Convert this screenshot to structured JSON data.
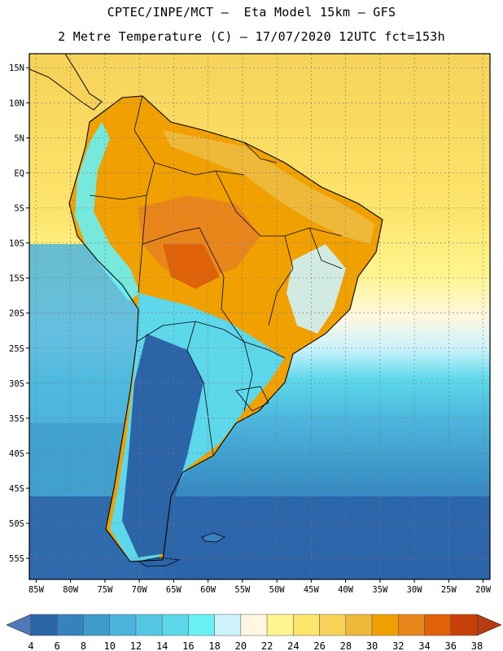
{
  "header": {
    "line1": "CPTEC/INPE/MCT –  Eta Model 15km – GFS",
    "line2": "2 Metre Temperature (C) – 17/07/2020 12UTC fct=153h"
  },
  "map": {
    "lon_range": [
      -86,
      -19
    ],
    "lat_range": [
      -58,
      17
    ],
    "lat_ticks": [
      {
        "value": 15,
        "label": "15N"
      },
      {
        "value": 10,
        "label": "10N"
      },
      {
        "value": 5,
        "label": "5N"
      },
      {
        "value": 0,
        "label": "EQ"
      },
      {
        "value": -5,
        "label": "5S"
      },
      {
        "value": -10,
        "label": "10S"
      },
      {
        "value": -15,
        "label": "15S"
      },
      {
        "value": -20,
        "label": "20S"
      },
      {
        "value": -25,
        "label": "25S"
      },
      {
        "value": -30,
        "label": "30S"
      },
      {
        "value": -35,
        "label": "35S"
      },
      {
        "value": -40,
        "label": "40S"
      },
      {
        "value": -45,
        "label": "45S"
      },
      {
        "value": -50,
        "label": "50S"
      },
      {
        "value": -55,
        "label": "55S"
      }
    ],
    "lon_ticks": [
      {
        "value": -85,
        "label": "85W"
      },
      {
        "value": -80,
        "label": "80W"
      },
      {
        "value": -75,
        "label": "75W"
      },
      {
        "value": -70,
        "label": "70W"
      },
      {
        "value": -65,
        "label": "65W"
      },
      {
        "value": -60,
        "label": "60W"
      },
      {
        "value": -55,
        "label": "55W"
      },
      {
        "value": -50,
        "label": "50W"
      },
      {
        "value": -45,
        "label": "45W"
      },
      {
        "value": -40,
        "label": "40W"
      },
      {
        "value": -35,
        "label": "35W"
      },
      {
        "value": -30,
        "label": "30W"
      },
      {
        "value": -25,
        "label": "25W"
      },
      {
        "value": -20,
        "label": "20W"
      }
    ]
  },
  "colorbar": {
    "labels": [
      "4",
      "6",
      "8",
      "10",
      "12",
      "14",
      "16",
      "18",
      "20",
      "22",
      "24",
      "26",
      "28",
      "30",
      "32",
      "34",
      "36",
      "38"
    ],
    "colors": [
      "#2c64a8",
      "#3582be",
      "#3e9ccc",
      "#4cb4dc",
      "#52c6e2",
      "#5cd8ea",
      "#69f1f4",
      "#cdf3fb",
      "#fff7e1",
      "#fff58e",
      "#fde46b",
      "#f7d35a",
      "#eeb838",
      "#f0a100",
      "#e8861b",
      "#df6108",
      "#c84009"
    ],
    "left_arrow_color": "#4e7ab8",
    "right_arrow_color": "#b83a12"
  }
}
